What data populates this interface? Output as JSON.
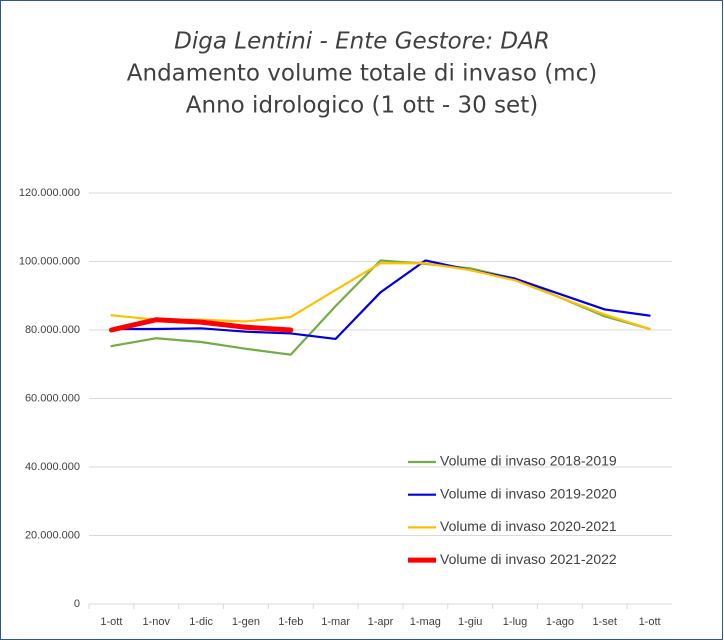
{
  "chart_data": {
    "type": "line",
    "title": [
      "Diga Lentini - Ente Gestore: DAR",
      "Andamento volume totale di invaso (mc)",
      "Anno idrologico (1 ott - 30 set)"
    ],
    "categories": [
      "1-ott",
      "1-nov",
      "1-dic",
      "1-gen",
      "1-feb",
      "1-mar",
      "1-apr",
      "1-mag",
      "1-giu",
      "1-lug",
      "1-ago",
      "1-set",
      "1-ott"
    ],
    "series": [
      {
        "name": "Volume di invaso 2018-2019",
        "color": "#70ad47",
        "line_width": 2.2,
        "values": [
          75300000,
          77600000,
          76500000,
          74500000,
          72800000,
          87000000,
          100300000,
          99300000,
          98000000,
          95000000,
          89500000,
          84000000,
          80300000
        ]
      },
      {
        "name": "Volume di invaso 2019-2020",
        "color": "#0000e0",
        "line_width": 2.2,
        "values": [
          80300000,
          80300000,
          80500000,
          79500000,
          79000000,
          77400000,
          91000000,
          100300000,
          97500000,
          95000000,
          90500000,
          86000000,
          84200000
        ]
      },
      {
        "name": "Volume di invaso 2020-2021",
        "color": "#ffc000",
        "line_width": 2.2,
        "values": [
          84300000,
          83000000,
          83000000,
          82500000,
          83800000,
          91700000,
          99500000,
          99500000,
          97500000,
          94500000,
          89500000,
          84500000,
          80300000
        ]
      },
      {
        "name": "Volume di invaso 2021-2022",
        "color": "#ff0000",
        "line_width": 5,
        "values": [
          80000000,
          83000000,
          82300000,
          80800000,
          80000000,
          null,
          null,
          null,
          null,
          null,
          null,
          null,
          null
        ]
      }
    ],
    "ylim": [
      0,
      120000000
    ],
    "yticks": [
      0,
      {
        "value": 20000000,
        "label": "20.000.000"
      },
      {
        "value": 40000000,
        "label": "40.000.000"
      },
      {
        "value": 60000000,
        "label": "60.000.000"
      },
      {
        "value": 80000000,
        "label": "80.000.000"
      },
      {
        "value": 100000000,
        "label": "100.000.000"
      },
      {
        "value": 120000000,
        "label": "120.000.000"
      }
    ],
    "grid": true,
    "legend": "lower right"
  }
}
